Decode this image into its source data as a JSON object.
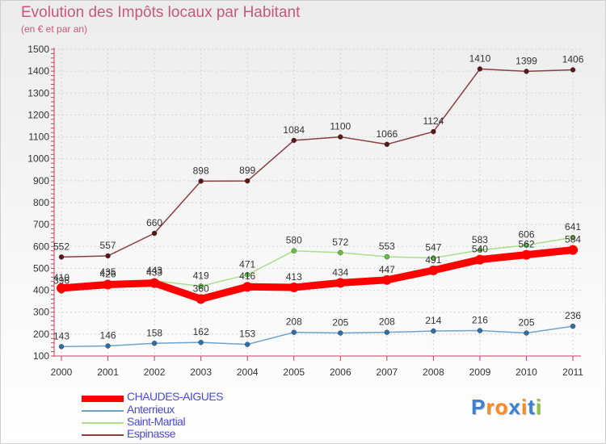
{
  "chart_data": {
    "type": "line",
    "title": "Evolution des Impôts locaux par Habitant",
    "subtitle": "(en € et par an)",
    "xlabel": "",
    "ylabel": "",
    "categories": [
      "2000",
      "2001",
      "2002",
      "2003",
      "2004",
      "2005",
      "2006",
      "2007",
      "2008",
      "2009",
      "2010",
      "2011"
    ],
    "ylim": [
      100,
      1500
    ],
    "yticks": [
      "100",
      "200",
      "300",
      "400",
      "500",
      "600",
      "700",
      "800",
      "900",
      "1000",
      "1100",
      "1200",
      "1300",
      "1400",
      "1500"
    ],
    "ytick_values": [
      100,
      200,
      300,
      400,
      500,
      600,
      700,
      800,
      900,
      1000,
      1100,
      1200,
      1300,
      1400,
      1500
    ],
    "grid": true,
    "series": [
      {
        "name": "CHAUDES-AIGUES",
        "color": "#ff0000",
        "values": [
          410,
          426,
          433,
          360,
          416,
          413,
          434,
          447,
          491,
          540,
          562,
          584
        ]
      },
      {
        "name": "Anterrieux",
        "color": "#6fa2cb",
        "values": [
          143,
          146,
          158,
          162,
          153,
          208,
          205,
          208,
          214,
          216,
          205,
          236
        ]
      },
      {
        "name": "Saint-Martial",
        "color": "#a9de8b",
        "values": [
          396,
          435,
          443,
          419,
          471,
          580,
          572,
          553,
          547,
          583,
          606,
          641
        ]
      },
      {
        "name": "Espinasse",
        "color": "#8a3e3e",
        "values": [
          552,
          557,
          660,
          898,
          899,
          1084,
          1100,
          1066,
          1124,
          1410,
          1399,
          1406
        ]
      }
    ],
    "labels": {
      "CHAUDES-AIGUES": [
        "410",
        "426",
        "433",
        "360",
        "416",
        "413",
        "434",
        "447",
        "491",
        "540",
        "562",
        "584"
      ],
      "Anterrieux": [
        "143",
        "146",
        "158",
        "162",
        "153",
        "208",
        "205",
        "208",
        "214",
        "216",
        "205",
        "236"
      ],
      "Saint-Martial": [
        "396",
        "435",
        "443",
        "419",
        "471",
        "580",
        "572",
        "553",
        "547",
        "583",
        "606",
        "641"
      ],
      "Espinasse": [
        "552",
        "557",
        "660",
        "898",
        "899",
        "1084",
        "1100",
        "1066",
        "1124",
        "1410",
        "1399",
        "1406"
      ]
    },
    "legend": [
      "CHAUDES-AIGUES",
      "Anterrieux",
      "Saint-Martial",
      "Espinasse"
    ],
    "legend_position": "bottom-left"
  },
  "brand": {
    "text": "Proxiti",
    "letters": [
      "P",
      "r",
      "o",
      "x",
      "i",
      "t",
      "i"
    ],
    "colors": [
      "#3a7fd0",
      "#ff8a1f",
      "#ff8a1f",
      "#3a7fd0",
      "#ff8a1f",
      "#3a7fd0",
      "#8cc63e"
    ]
  }
}
